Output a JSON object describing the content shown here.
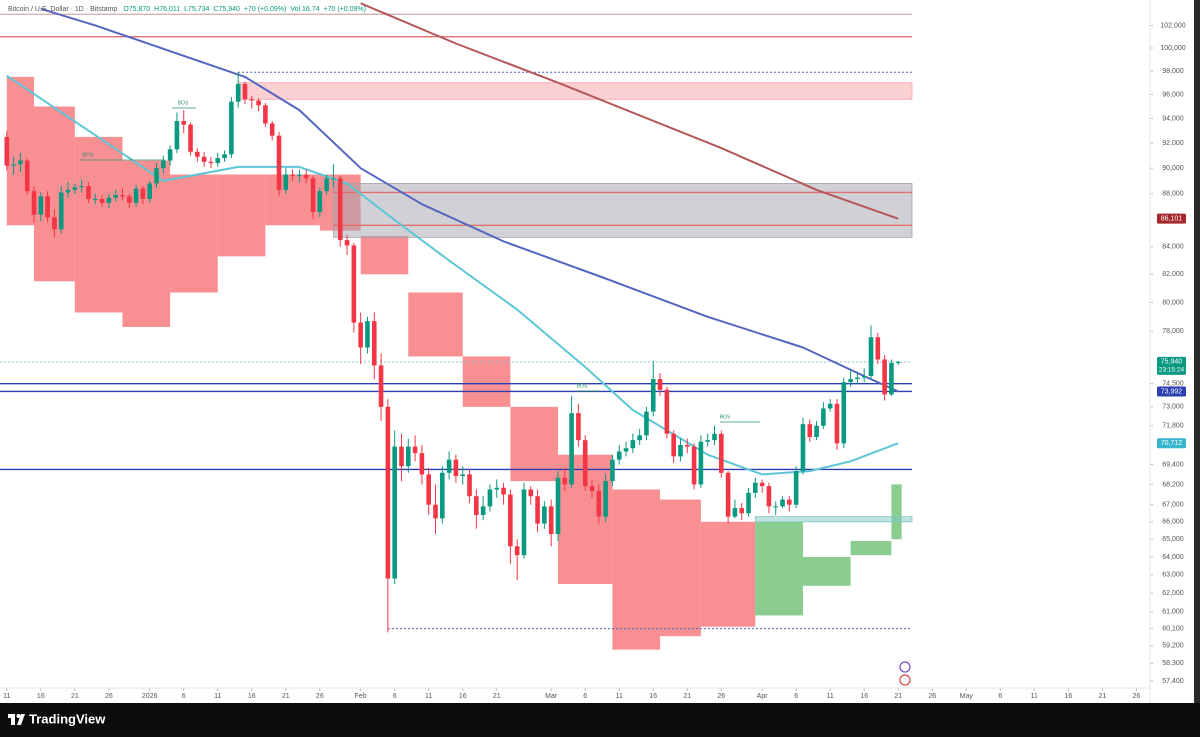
{
  "chart_data": {
    "type": "candlestick",
    "header": {
      "symbol": "Bitcoin / U.S. Dollar · 1D · Bitstamp",
      "ohlc": [
        "O75,870",
        "H76,011",
        "L75,734",
        "C75,940",
        "+70 (+0.09%)"
      ],
      "volume": "Vol 16.74",
      "volume_change": "+70 (+0.09%)"
    },
    "log_scale": true,
    "xlim": [
      "2025-12-10",
      "2026-05-28"
    ],
    "ylim": [
      57050,
      104300
    ],
    "up_color": "#089981",
    "down_color": "#f23645",
    "x": [
      "2025-12-11",
      "2025-12-12",
      "2025-12-13",
      "2025-12-14",
      "2025-12-15",
      "2025-12-16",
      "2025-12-17",
      "2025-12-18",
      "2025-12-19",
      "2025-12-20",
      "2025-12-21",
      "2025-12-22",
      "2025-12-23",
      "2025-12-24",
      "2025-12-25",
      "2025-12-26",
      "2025-12-27",
      "2025-12-28",
      "2025-12-29",
      "2025-12-30",
      "2025-12-31",
      "2026-01-01",
      "2026-01-02",
      "2026-01-03",
      "2026-01-04",
      "2026-01-05",
      "2026-01-06",
      "2026-01-07",
      "2026-01-08",
      "2026-01-09",
      "2026-01-10",
      "2026-01-11",
      "2026-01-12",
      "2026-01-13",
      "2026-01-14",
      "2026-01-15",
      "2026-01-16",
      "2026-01-17",
      "2026-01-18",
      "2026-01-19",
      "2026-01-20",
      "2026-01-21",
      "2026-01-22",
      "2026-01-23",
      "2026-01-24",
      "2026-01-25",
      "2026-01-26",
      "2026-01-27",
      "2026-01-28",
      "2026-01-29",
      "2026-01-30",
      "2026-01-31",
      "2026-02-01",
      "2026-02-02",
      "2026-02-03",
      "2026-02-04",
      "2026-02-05",
      "2026-02-06",
      "2026-02-07",
      "2026-02-08",
      "2026-02-09",
      "2026-02-10",
      "2026-02-11",
      "2026-02-12",
      "2026-02-13",
      "2026-02-14",
      "2026-02-15",
      "2026-02-16",
      "2026-02-17",
      "2026-02-18",
      "2026-02-19",
      "2026-02-20",
      "2026-02-21",
      "2026-02-22",
      "2026-02-23",
      "2026-02-24",
      "2026-02-25",
      "2026-02-26",
      "2026-02-27",
      "2026-02-28",
      "2026-03-01",
      "2026-03-02",
      "2026-03-03",
      "2026-03-04",
      "2026-03-05",
      "2026-03-06",
      "2026-03-07",
      "2026-03-08",
      "2026-03-09",
      "2026-03-10",
      "2026-03-11",
      "2026-03-12",
      "2026-03-13",
      "2026-03-14",
      "2026-03-15",
      "2026-03-16",
      "2026-03-17",
      "2026-03-18",
      "2026-03-19",
      "2026-03-20",
      "2026-03-21",
      "2026-03-22",
      "2026-03-23",
      "2026-03-24",
      "2026-03-25",
      "2026-03-26",
      "2026-03-27",
      "2026-03-28",
      "2026-03-29",
      "2026-03-30",
      "2026-03-31",
      "2026-04-01",
      "2026-04-02",
      "2026-04-03",
      "2026-04-04",
      "2026-04-05",
      "2026-04-06",
      "2026-04-07",
      "2026-04-08",
      "2026-04-09",
      "2026-04-10",
      "2026-04-11",
      "2026-04-12",
      "2026-04-13",
      "2026-04-14",
      "2026-04-15",
      "2026-04-16",
      "2026-04-17",
      "2026-04-18",
      "2026-04-19",
      "2026-04-20",
      "2026-04-21"
    ],
    "open": [
      92500,
      90200,
      90300,
      90600,
      88200,
      86400,
      87800,
      86200,
      85300,
      88100,
      88300,
      88500,
      88600,
      87600,
      87600,
      87300,
      87700,
      87900,
      87800,
      87300,
      88400,
      87600,
      88800,
      90000,
      90600,
      91500,
      93800,
      93500,
      91300,
      90900,
      90500,
      90400,
      90800,
      91100,
      95400,
      96900,
      95600,
      95500,
      95100,
      93600,
      92600,
      88300,
      89500,
      89400,
      89500,
      89200,
      86600,
      88200,
      89200,
      89200,
      84500,
      84100,
      78600,
      76900,
      78700,
      75700,
      73000,
      62800,
      70500,
      69300,
      70500,
      70100,
      68800,
      67000,
      66200,
      68900,
      69700,
      68700,
      68800,
      67500,
      66400,
      66900,
      67900,
      68000,
      67600,
      64600,
      64100,
      67900,
      67500,
      65900,
      66900,
      65300,
      68600,
      68200,
      72600,
      70900,
      68100,
      67800,
      66300,
      68400,
      69700,
      70200,
      70400,
      70900,
      71200,
      72700,
      74800,
      74100,
      71300,
      69900,
      70600,
      70500,
      68200,
      70800,
      70900,
      71300,
      68900,
      66300,
      66800,
      66500,
      67700,
      68300,
      68100,
      66900,
      66900,
      67300,
      67000,
      69000,
      71900,
      71100,
      71800,
      72900,
      73200,
      70700,
      74600,
      74800,
      74900,
      75000,
      77600,
      76100,
      73800,
      75870
    ],
    "high": [
      93000,
      90900,
      91200,
      90800,
      88600,
      88100,
      88200,
      86800,
      88600,
      88900,
      88800,
      89100,
      88900,
      88000,
      87900,
      88000,
      88300,
      88400,
      88000,
      88700,
      88600,
      89000,
      90400,
      91000,
      91800,
      94500,
      94700,
      93700,
      91600,
      91300,
      90900,
      91200,
      91400,
      95800,
      97900,
      97100,
      95900,
      95700,
      95300,
      93800,
      92900,
      90000,
      89900,
      89900,
      89900,
      89400,
      88500,
      89500,
      90300,
      89400,
      84900,
      84300,
      79300,
      79000,
      79300,
      76500,
      73500,
      71500,
      71300,
      71000,
      71200,
      70600,
      69200,
      68200,
      69300,
      70200,
      70000,
      69300,
      69100,
      67900,
      67500,
      68200,
      68500,
      68300,
      67900,
      65000,
      68300,
      68100,
      67900,
      67200,
      67300,
      69000,
      69200,
      73700,
      73200,
      71200,
      68500,
      68200,
      68800,
      70000,
      70600,
      70800,
      71300,
      71600,
      73000,
      76000,
      75200,
      74300,
      71500,
      71000,
      71000,
      70700,
      71200,
      71300,
      71800,
      71500,
      69000,
      67300,
      67100,
      68000,
      68600,
      68500,
      68300,
      67200,
      67500,
      67500,
      69300,
      72300,
      72200,
      72100,
      73300,
      73500,
      73500,
      74900,
      75400,
      75300,
      75500,
      78400,
      77900,
      76400,
      76100,
      76011
    ],
    "low": [
      89800,
      89500,
      89700,
      87900,
      85800,
      85900,
      85800,
      84700,
      85000,
      87700,
      88000,
      88100,
      87300,
      87200,
      87000,
      86900,
      87400,
      87500,
      86900,
      87000,
      87200,
      87300,
      88500,
      89600,
      90200,
      91200,
      92800,
      91000,
      90500,
      90100,
      90000,
      90100,
      90500,
      90800,
      94900,
      95200,
      94800,
      94600,
      93300,
      92200,
      87800,
      88000,
      89000,
      88900,
      88800,
      86100,
      86200,
      87900,
      88500,
      84000,
      83400,
      77900,
      75800,
      76500,
      74800,
      72100,
      59900,
      62500,
      68400,
      68900,
      69600,
      68200,
      66400,
      65300,
      65900,
      68500,
      68300,
      68200,
      67100,
      65600,
      66100,
      66600,
      67400,
      67000,
      63600,
      62700,
      63900,
      67000,
      65400,
      65600,
      64600,
      64900,
      67800,
      68000,
      70500,
      67800,
      67400,
      65900,
      66000,
      68100,
      69400,
      69900,
      70100,
      70600,
      70900,
      72400,
      73700,
      71000,
      69500,
      69600,
      70100,
      67900,
      68000,
      70500,
      70600,
      68600,
      65900,
      66200,
      66100,
      66300,
      67400,
      67700,
      66500,
      66400,
      66800,
      66600,
      66800,
      68800,
      70800,
      70900,
      71600,
      72700,
      70300,
      70400,
      74300,
      74500,
      74600,
      74800,
      75800,
      73400,
      73700,
      75734
    ],
    "close": [
      90200,
      90300,
      90600,
      88200,
      86400,
      87800,
      86200,
      85300,
      88100,
      88300,
      88500,
      88600,
      87600,
      87600,
      87300,
      87700,
      87900,
      87800,
      87300,
      88400,
      87600,
      88800,
      90000,
      90600,
      91500,
      93800,
      93500,
      91300,
      90900,
      90500,
      90400,
      90800,
      91100,
      95400,
      96900,
      95600,
      95500,
      95100,
      93600,
      92600,
      88300,
      89500,
      89400,
      89500,
      89200,
      86600,
      88200,
      89200,
      89200,
      84500,
      84100,
      78600,
      76900,
      78700,
      75700,
      73000,
      62800,
      70500,
      69300,
      70500,
      70100,
      68800,
      67000,
      66200,
      68900,
      69700,
      68700,
      68800,
      67500,
      66400,
      66900,
      67900,
      68000,
      67600,
      64600,
      64100,
      67900,
      67500,
      65900,
      66900,
      65300,
      68600,
      68200,
      72600,
      70900,
      68100,
      67800,
      66300,
      68400,
      69700,
      70200,
      70400,
      70900,
      71200,
      72700,
      74800,
      74100,
      71300,
      69900,
      70600,
      70500,
      68200,
      70800,
      70900,
      71300,
      68900,
      66300,
      66800,
      66500,
      67700,
      68300,
      68100,
      66900,
      66900,
      67300,
      67000,
      69000,
      71900,
      71100,
      71800,
      72900,
      73200,
      70700,
      74600,
      74800,
      74900,
      75000,
      77600,
      76100,
      73800,
      75870,
      75940
    ],
    "cloud": {
      "up_color": "#77c47a",
      "down_color": "#f77c80",
      "x": [
        "2025-12-11",
        "2025-12-15",
        "2025-12-21",
        "2025-12-28",
        "2026-01-04",
        "2026-01-11",
        "2026-01-18",
        "2026-01-26",
        "2026-02-01",
        "2026-02-08",
        "2026-02-16",
        "2026-02-23",
        "2026-03-02",
        "2026-03-10",
        "2026-03-17",
        "2026-03-23",
        "2026-03-31",
        "2026-04-07",
        "2026-04-14",
        "2026-04-20"
      ],
      "span_a": [
        85600,
        81500,
        79300,
        78300,
        80700,
        83300,
        85600,
        85200,
        82000,
        76300,
        73000,
        68400,
        62500,
        59000,
        59700,
        60200,
        66000,
        64000,
        64900,
        68200
      ],
      "span_b": [
        97500,
        95000,
        92500,
        90600,
        89500,
        89500,
        89500,
        89500,
        84800,
        80700,
        76300,
        73000,
        70000,
        67900,
        67300,
        66000,
        60800,
        62400,
        64100,
        65000
      ]
    },
    "moving_averages": [
      {
        "color": "#b5575a",
        "x": [
          "2026-02-01",
          "2026-02-15",
          "2026-03-02",
          "2026-03-26",
          "2026-04-09",
          "2026-04-21"
        ],
        "values": [
          104000,
          100400,
          97000,
          91600,
          88300,
          86101
        ]
      },
      {
        "color": "#5566c0",
        "x": [
          "2025-12-16",
          "2025-12-24",
          "2026-01-15",
          "2026-01-23",
          "2026-02-01",
          "2026-02-10",
          "2026-02-22",
          "2026-03-09",
          "2026-03-24",
          "2026-04-07",
          "2026-04-16",
          "2026-04-21"
        ],
        "values": [
          103500,
          102000,
          97500,
          94700,
          90000,
          87200,
          84400,
          81700,
          79000,
          76900,
          75000,
          73992
        ]
      },
      {
        "color": "#5cc6d6",
        "x": [
          "2025-12-11",
          "2026-01-03",
          "2026-01-14",
          "2026-01-23",
          "2026-01-30",
          "2026-02-06",
          "2026-02-14",
          "2026-02-24",
          "2026-03-06",
          "2026-03-13",
          "2026-03-24",
          "2026-04-01",
          "2026-04-08",
          "2026-04-14",
          "2026-04-21"
        ],
        "values": [
          97600,
          89000,
          90100,
          90100,
          88800,
          86000,
          83000,
          79500,
          75600,
          72800,
          70000,
          68800,
          69000,
          69600,
          70712
        ]
      }
    ],
    "zones": [
      {
        "from": "2026-01-14",
        "top": 97000,
        "bottom": 95600,
        "color": "#f7a1a8"
      },
      {
        "from": "2026-01-28",
        "top": 88800,
        "bottom": 84700,
        "color": "#a3a3ab"
      },
      {
        "from": "2026-03-31",
        "top": 66300,
        "bottom": 66000,
        "color": "#7fc8c0"
      }
    ],
    "levels": [
      {
        "value": 103000,
        "color": "#d9b3b3"
      },
      {
        "value": 101000,
        "color": "#e07070"
      },
      {
        "value": 97900,
        "color": "#4a5fc1",
        "dashed": true,
        "from": "2026-01-14"
      },
      {
        "value": 60100,
        "color": "#4a5fc1",
        "dashed": true,
        "from": "2026-02-05"
      },
      {
        "value": 88100,
        "color": "#e07070",
        "from": "2026-01-28"
      },
      {
        "value": 85600,
        "color": "#e07070",
        "from": "2026-01-28"
      },
      {
        "value": 75940,
        "color": "#9cc7cc",
        "dashed": true
      },
      {
        "value": 74500,
        "color": "#2b3fb0"
      },
      {
        "value": 73992,
        "color": "#2b3fb0"
      },
      {
        "value": 69100,
        "color": "#2b3fb0"
      }
    ],
    "price_badges": [
      {
        "value": 86101,
        "label": "86,101",
        "color": "#a4282c"
      },
      {
        "value": 75940,
        "label": "75,940",
        "sub": "23:15:24",
        "color": "#089981"
      },
      {
        "value": 73992,
        "label": "73,992",
        "color": "#2b3fb0"
      },
      {
        "value": 70712,
        "label": "70,712",
        "color": "#36b6cc"
      }
    ],
    "annotations": [
      "BOS",
      "BOS",
      "BOS",
      "BOS"
    ],
    "yticks": [
      {
        "value": 102000,
        "label": "102,000"
      },
      {
        "value": 100000,
        "label": "100,000"
      },
      {
        "value": 98000,
        "label": "98,000"
      },
      {
        "value": 96000,
        "label": "96,000"
      },
      {
        "value": 94000,
        "label": "94,000"
      },
      {
        "value": 92000,
        "label": "92,000"
      },
      {
        "value": 90000,
        "label": "90,000"
      },
      {
        "value": 88000,
        "label": "88,000"
      },
      {
        "value": 84000,
        "label": "84,000"
      },
      {
        "value": 82000,
        "label": "82,000"
      },
      {
        "value": 80000,
        "label": "80,000"
      },
      {
        "value": 78000,
        "label": "78,000"
      },
      {
        "value": 74500,
        "label": "74,500"
      },
      {
        "value": 73000,
        "label": "73,000"
      },
      {
        "value": 71800,
        "label": "71,800"
      },
      {
        "value": 69400,
        "label": "69,400"
      },
      {
        "value": 68200,
        "label": "68,200"
      },
      {
        "value": 67000,
        "label": "67,000"
      },
      {
        "value": 66000,
        "label": "66,000"
      },
      {
        "value": 65000,
        "label": "65,000"
      },
      {
        "value": 64000,
        "label": "64,000"
      },
      {
        "value": 63000,
        "label": "63,000"
      },
      {
        "value": 62000,
        "label": "62,000"
      },
      {
        "value": 61000,
        "label": "61,000"
      },
      {
        "value": 60100,
        "label": "60,100"
      },
      {
        "value": 59200,
        "label": "59,200"
      },
      {
        "value": 58300,
        "label": "58,300"
      },
      {
        "value": 57400,
        "label": "57,400"
      }
    ],
    "xticks": [
      {
        "value": "2025-12-11",
        "label": "11"
      },
      {
        "value": "2025-12-16",
        "label": "16"
      },
      {
        "value": "2025-12-21",
        "label": "21"
      },
      {
        "value": "2025-12-26",
        "label": "26"
      },
      {
        "value": "2026-01-01",
        "label": "2026"
      },
      {
        "value": "2026-01-06",
        "label": "6"
      },
      {
        "value": "2026-01-11",
        "label": "11"
      },
      {
        "value": "2026-01-16",
        "label": "16"
      },
      {
        "value": "2026-01-21",
        "label": "21"
      },
      {
        "value": "2026-01-26",
        "label": "26"
      },
      {
        "value": "2026-02-01",
        "label": "Feb"
      },
      {
        "value": "2026-02-06",
        "label": "6"
      },
      {
        "value": "2026-02-11",
        "label": "11"
      },
      {
        "value": "2026-02-16",
        "label": "16"
      },
      {
        "value": "2026-02-21",
        "label": "21"
      },
      {
        "value": "2026-03-01",
        "label": "Mar"
      },
      {
        "value": "2026-03-06",
        "label": "6"
      },
      {
        "value": "2026-03-11",
        "label": "11"
      },
      {
        "value": "2026-03-16",
        "label": "16"
      },
      {
        "value": "2026-03-21",
        "label": "21"
      },
      {
        "value": "2026-03-26",
        "label": "26"
      },
      {
        "value": "2026-04-01",
        "label": "Apr"
      },
      {
        "value": "2026-04-06",
        "label": "6"
      },
      {
        "value": "2026-04-11",
        "label": "11"
      },
      {
        "value": "2026-04-16",
        "label": "16"
      },
      {
        "value": "2026-04-21",
        "label": "21"
      },
      {
        "value": "2026-04-26",
        "label": "26"
      },
      {
        "value": "2026-05-01",
        "label": "May"
      },
      {
        "value": "2026-05-06",
        "label": "6"
      },
      {
        "value": "2026-05-11",
        "label": "11"
      },
      {
        "value": "2026-05-16",
        "label": "16"
      },
      {
        "value": "2026-05-21",
        "label": "21"
      },
      {
        "value": "2026-05-26",
        "label": "26"
      }
    ]
  },
  "footer": {
    "brand": "TradingView"
  }
}
